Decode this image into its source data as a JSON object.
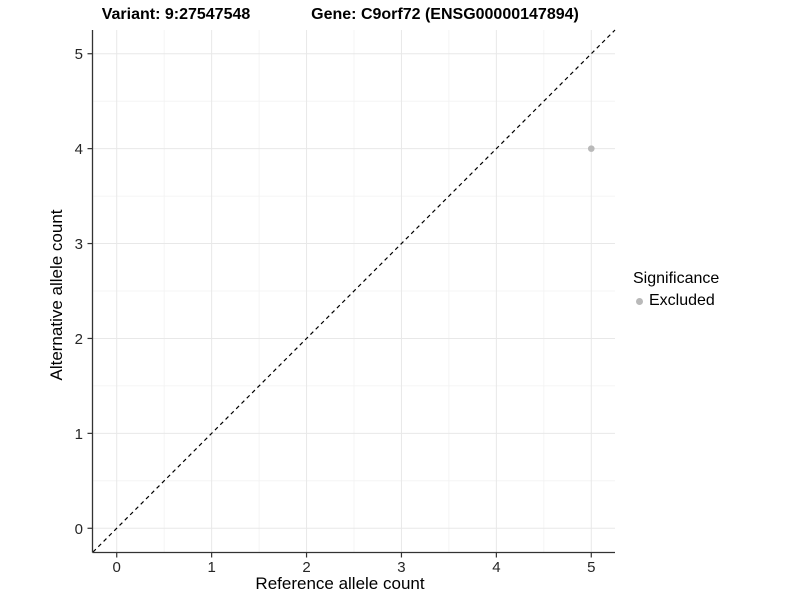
{
  "titles": {
    "variant": "Variant: 9:27547548",
    "gene": "Gene: C9orf72 (ENSG00000147894)"
  },
  "legend": {
    "title": "Significance",
    "items": [
      {
        "label": "Excluded",
        "color": "#b9b9b9"
      }
    ]
  },
  "colors": {
    "background": "#ffffff",
    "grid_major": "#e8e8e8",
    "grid_minor": "#f2f2f2",
    "axis_line": "#333333",
    "tick_text": "#262626",
    "identity_line": "#000000",
    "point_excluded": "#b9b9b9"
  },
  "chart_data": {
    "type": "scatter",
    "title": "Variant: 9:27547548 / Gene: C9orf72 (ENSG00000147894)",
    "xlabel": "Reference allele count",
    "ylabel": "Alternative allele count",
    "xlim": [
      -0.25,
      5.25
    ],
    "ylim": [
      -0.25,
      5.25
    ],
    "x_major_ticks": [
      0,
      1,
      2,
      3,
      4,
      5
    ],
    "y_major_ticks": [
      0,
      1,
      2,
      3,
      4,
      5
    ],
    "x_minor_ticks": [
      0.5,
      1.5,
      2.5,
      3.5,
      4.5
    ],
    "y_minor_ticks": [
      0.5,
      1.5,
      2.5,
      3.5,
      4.5
    ],
    "grid": true,
    "legend_position": "right",
    "reference_line": {
      "kind": "identity",
      "slope": 1,
      "intercept": 0,
      "style": "dashed"
    },
    "series": [
      {
        "name": "Excluded",
        "points": [
          {
            "x": 5,
            "y": 4
          }
        ]
      }
    ]
  }
}
